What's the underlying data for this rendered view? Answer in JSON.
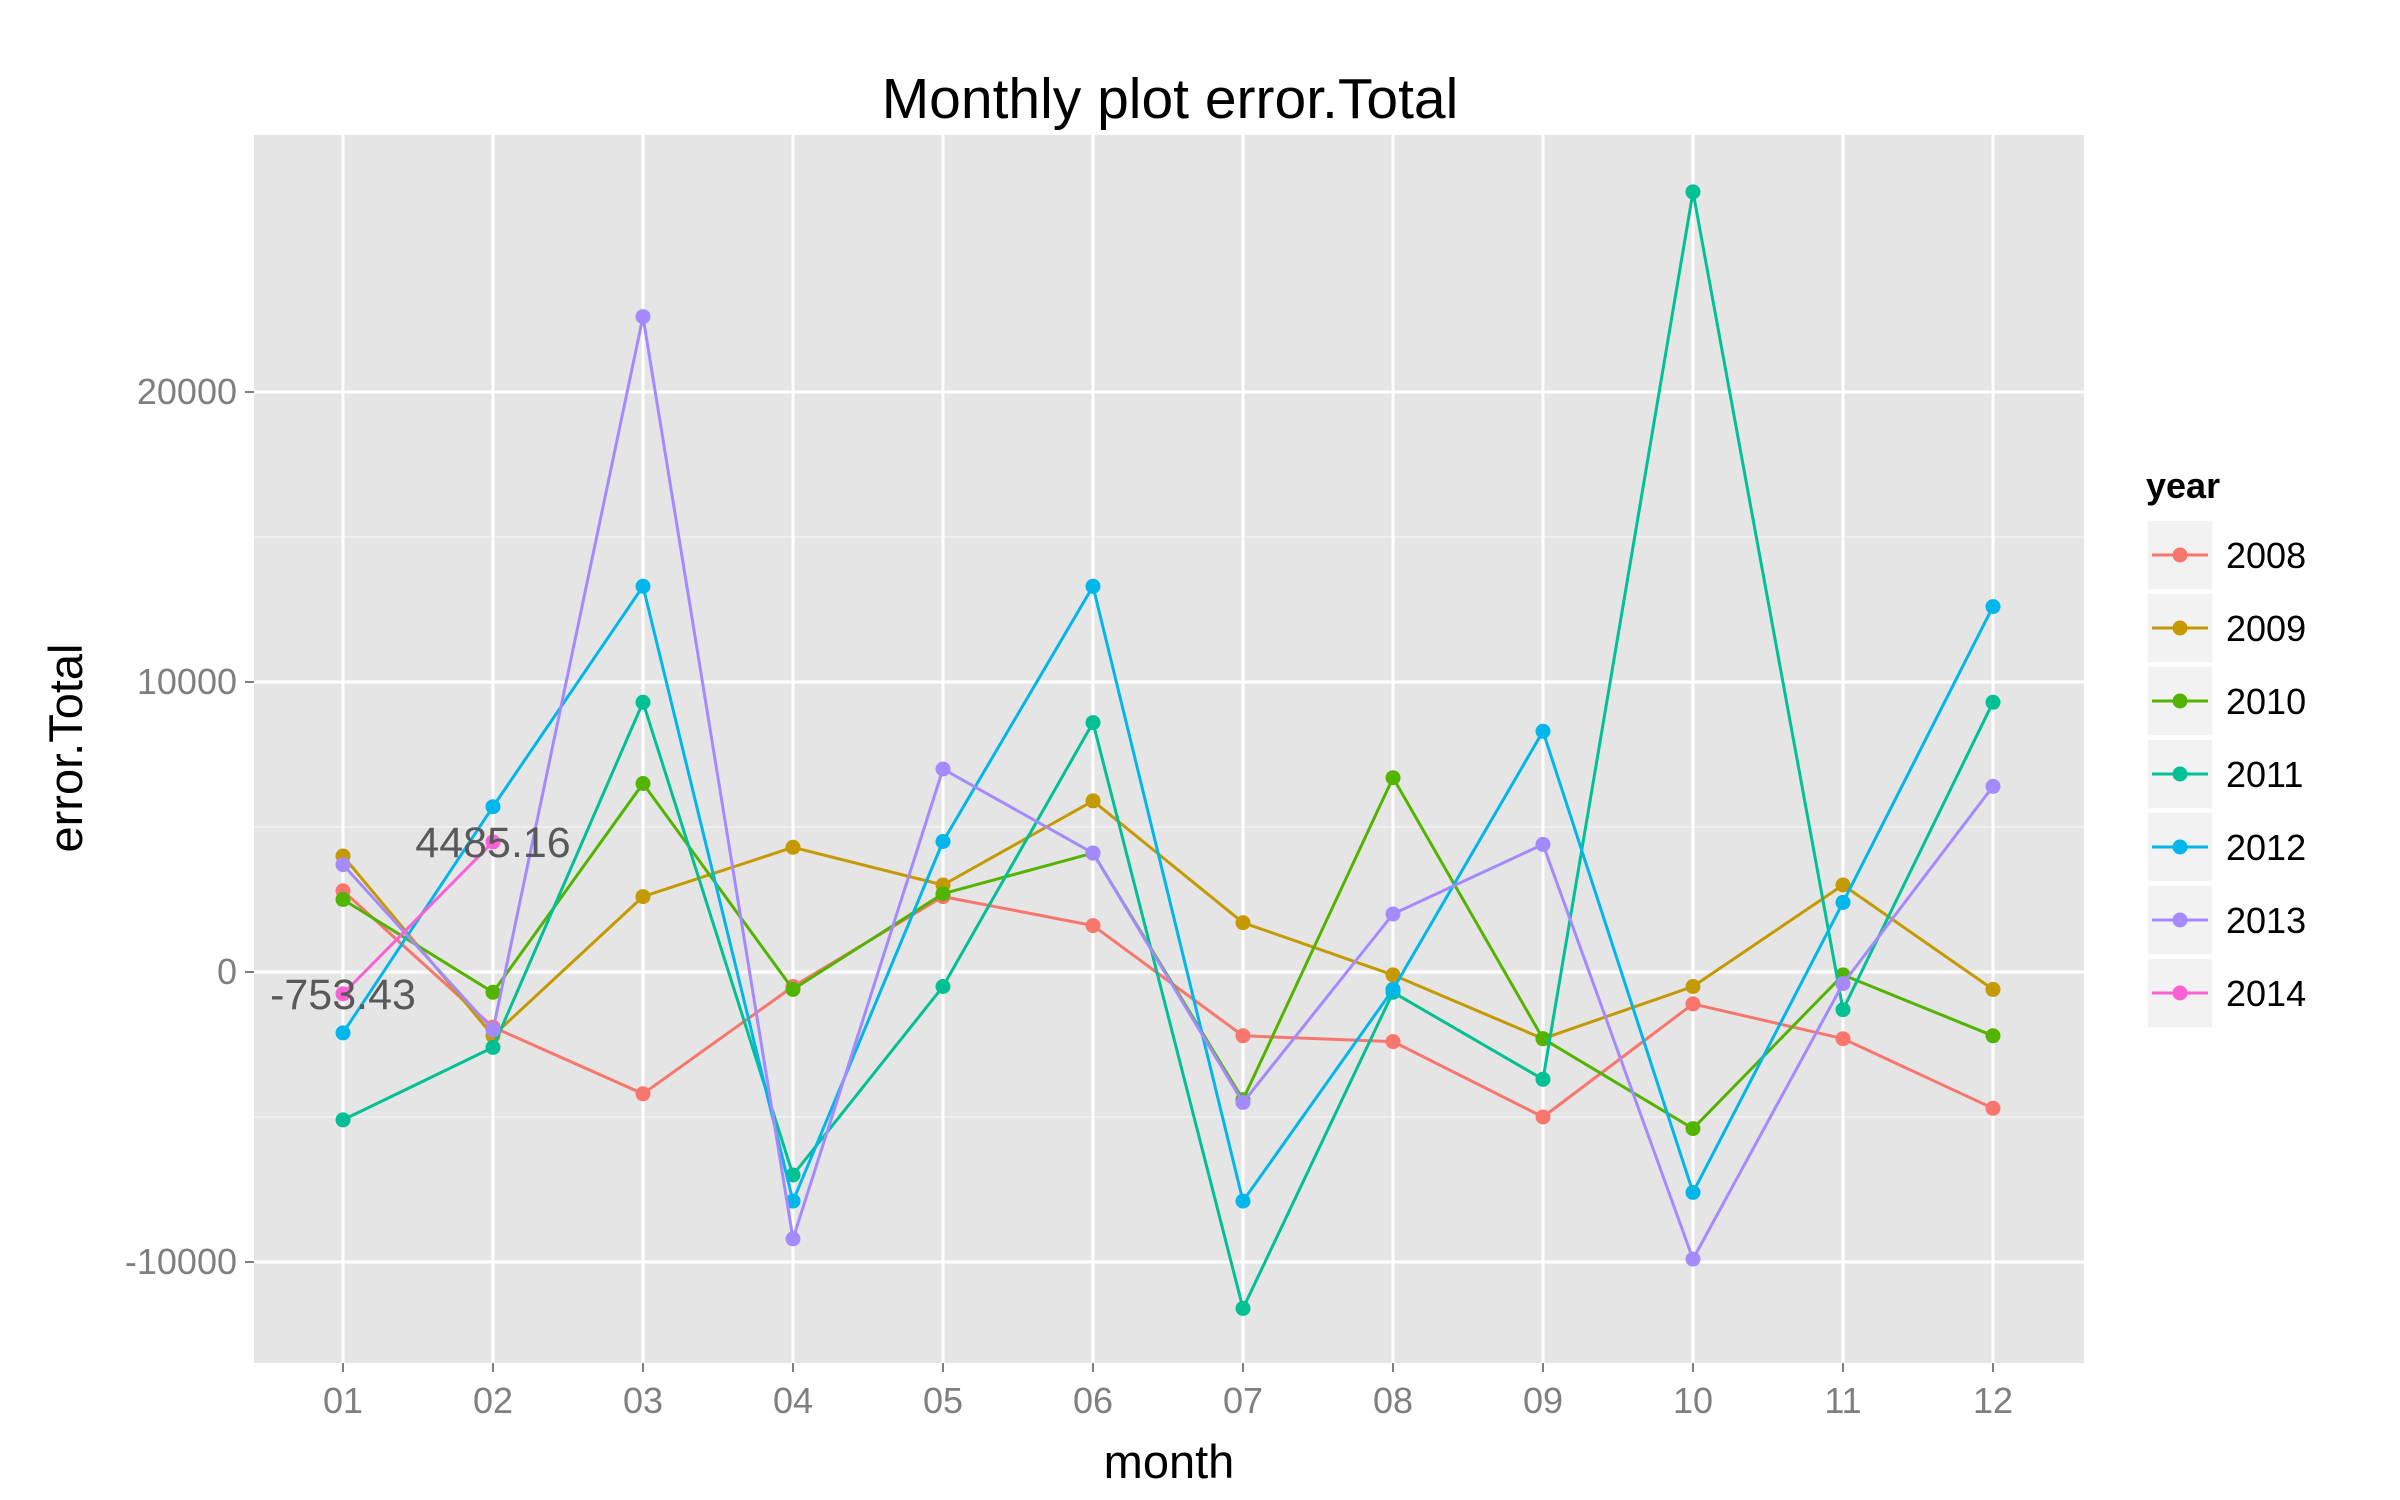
{
  "chart_data": {
    "type": "line",
    "title": "Monthly plot error.Total",
    "xlabel": "month",
    "ylabel": "error.Total",
    "categories": [
      "01",
      "02",
      "03",
      "04",
      "05",
      "06",
      "07",
      "08",
      "09",
      "10",
      "11",
      "12"
    ],
    "ylim": [
      -13500,
      28500
    ],
    "yticks": [
      -10000,
      0,
      10000,
      20000
    ],
    "y_tick_labels": [
      "-10000",
      "0",
      "10000",
      "20000"
    ],
    "grid": true,
    "legend": {
      "title": "year",
      "position": "right"
    },
    "series": [
      {
        "name": "2008",
        "color": "#F8766D",
        "values": [
          2800,
          -1900,
          -4200,
          -500,
          2600,
          1600,
          -2200,
          -2400,
          -5000,
          -1100,
          -2300,
          -4700
        ]
      },
      {
        "name": "2009",
        "color": "#C49A00",
        "values": [
          4000,
          -2200,
          2600,
          4300,
          3000,
          5900,
          1700,
          -100,
          -2300,
          -500,
          3000,
          -600
        ]
      },
      {
        "name": "2010",
        "color": "#53B400",
        "values": [
          2500,
          -700,
          6500,
          -600,
          2700,
          4100,
          -4400,
          6700,
          -2300,
          -5400,
          -100,
          -2200
        ]
      },
      {
        "name": "2011",
        "color": "#00C094",
        "values": [
          -5100,
          -2600,
          9300,
          -7000,
          -500,
          8600,
          -11600,
          -700,
          -3700,
          26900,
          -1300,
          9300
        ]
      },
      {
        "name": "2012",
        "color": "#00B6EB",
        "values": [
          -2100,
          5700,
          13300,
          -7900,
          4500,
          13300,
          -7900,
          -600,
          8300,
          -7600,
          2400,
          12600
        ]
      },
      {
        "name": "2013",
        "color": "#A58AFF",
        "values": [
          3700,
          -2000,
          22600,
          -9200,
          7000,
          4100,
          -4500,
          2000,
          4400,
          -9900,
          -400,
          6400
        ]
      },
      {
        "name": "2014",
        "color": "#FB61D7",
        "values": [
          -753.43,
          4485.16,
          null,
          null,
          null,
          null,
          null,
          null,
          null,
          null,
          null,
          null
        ]
      }
    ],
    "annotations": [
      {
        "text": "-753.43",
        "x": "01",
        "y": -753.43
      },
      {
        "text": "4485.16",
        "x": "02",
        "y": 4485.16
      }
    ]
  }
}
